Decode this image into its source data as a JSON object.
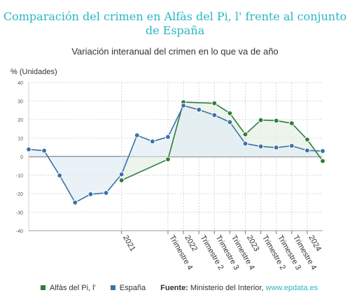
{
  "title": "Comparación del crimen en Alfàs del Pi, l' frente al conjunto de España",
  "subtitle": "Variación interanual del crimen en lo que va de año",
  "chart_data": {
    "type": "line",
    "ylabel": "% (Unidades)",
    "ylim": [
      -40,
      40
    ],
    "yticks": [
      -40,
      -30,
      -20,
      -10,
      0,
      10,
      20,
      30,
      40
    ],
    "x_count": 20,
    "x_tick_labels": [
      {
        "i": 6,
        "label": "2021"
      },
      {
        "i": 9,
        "label": "Trimestre 4"
      },
      {
        "i": 10,
        "label": "2022"
      },
      {
        "i": 11,
        "label": "Trimestre 2"
      },
      {
        "i": 12,
        "label": "Trimestre 3"
      },
      {
        "i": 13,
        "label": "Trimestre 4"
      },
      {
        "i": 14,
        "label": "2023"
      },
      {
        "i": 15,
        "label": "Trimestre 2"
      },
      {
        "i": 16,
        "label": "Trimestre 3"
      },
      {
        "i": 17,
        "label": "Trimestre 4"
      },
      {
        "i": 18,
        "label": "2024"
      }
    ],
    "grid": true,
    "series": [
      {
        "name": "Alfàs del Pi, l'",
        "color": "#2e7d3b",
        "fill": "#e4f0e4",
        "values": [
          null,
          null,
          null,
          null,
          null,
          null,
          -12.8,
          null,
          null,
          -1.5,
          29.4,
          null,
          28.8,
          23.4,
          12.0,
          19.7,
          19.4,
          18.0,
          9.2,
          -2.4
        ]
      },
      {
        "name": "España",
        "color": "#3a72a8",
        "fill": "#e3ecf4",
        "values": [
          3.9,
          3.2,
          -10.2,
          -24.8,
          -20.3,
          -19.6,
          -9.6,
          11.5,
          8.2,
          10.6,
          27.5,
          25.3,
          22.4,
          18.6,
          7.0,
          5.5,
          4.9,
          5.8,
          3.3,
          3.0
        ]
      }
    ]
  },
  "legend": {
    "items": [
      {
        "label": "Alfàs del Pi, l'",
        "color": "#2e7d3b"
      },
      {
        "label": "España",
        "color": "#3a72a8"
      }
    ],
    "source_label": "Fuente:",
    "source_text": "Ministerio del Interior,",
    "source_link": "www.epdata.es"
  }
}
